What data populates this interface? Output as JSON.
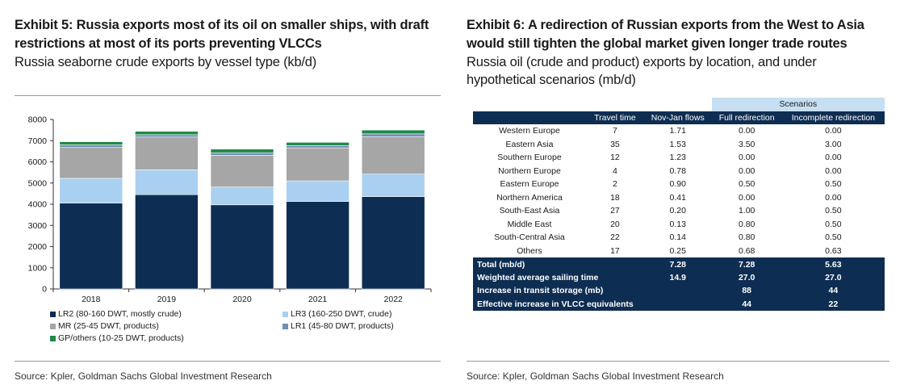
{
  "left": {
    "title": "Exhibit 5: Russia exports most of its oil on smaller ships, with draft restrictions at most of its ports preventing VLCCs",
    "subtitle": "Russia seaborne crude exports by vessel type (kb/d)",
    "source": "Source: Kpler, Goldman Sachs Global Investment Research"
  },
  "right": {
    "title": "Exhibit 6: A redirection of Russian exports from the West to Asia would still tighten the global market given longer trade routes",
    "subtitle": "Russia oil (crude and product) exports by location, and under hypothetical scenarios (mb/d)",
    "source": "Source: Kpler, Goldman Sachs Global Investment Research"
  },
  "colors": {
    "lr2": "#0e2d52",
    "lr3": "#a9d0f0",
    "mr": "#a6a6a6",
    "lr1": "#6f8fb3",
    "gp": "#1e8a4a",
    "table_dark": "#0e2d52",
    "table_light": "#c6dff2"
  },
  "chart_data": {
    "type": "bar",
    "stacked": true,
    "title": "Russia seaborne crude exports by vessel type (kb/d)",
    "categories": [
      "2018",
      "2019",
      "2020",
      "2021",
      "2022"
    ],
    "ylim": [
      0,
      8000
    ],
    "yticks": [
      0,
      1000,
      2000,
      3000,
      4000,
      5000,
      6000,
      7000,
      8000
    ],
    "grid": false,
    "legend_position": "bottom",
    "series": [
      {
        "name": "LR2 (80-160 DWT, mostly crude)",
        "color": "#0e2d52",
        "values": [
          4050,
          4450,
          3970,
          4130,
          4360
        ]
      },
      {
        "name": "LR3 (160-250 DWT, crude)",
        "color": "#a9d0f0",
        "values": [
          1170,
          1170,
          840,
          970,
          1060
        ]
      },
      {
        "name": "MR (25-45 DWT, products)",
        "color": "#a6a6a6",
        "values": [
          1460,
          1550,
          1500,
          1560,
          1760
        ]
      },
      {
        "name": "LR1 (45-80 DWT, products)",
        "color": "#6f8fb3",
        "values": [
          120,
          110,
          120,
          110,
          140
        ]
      },
      {
        "name": "GP/others (10-25 DWT, products)",
        "color": "#1e8a4a",
        "values": [
          150,
          160,
          170,
          150,
          180
        ]
      }
    ]
  },
  "table": {
    "scenarios_label": "Scenarios",
    "headers": [
      "",
      "Travel time",
      "Nov-Jan flows",
      "Full redirection",
      "Incomplete redirection"
    ],
    "rows": [
      [
        "Western Europe",
        "7",
        "1.71",
        "0.00",
        "0.00"
      ],
      [
        "Eastern Asia",
        "35",
        "1.53",
        "3.50",
        "3.00"
      ],
      [
        "Southern Europe",
        "12",
        "1.23",
        "0.00",
        "0.00"
      ],
      [
        "Northern Europe",
        "4",
        "0.78",
        "0.00",
        "0.00"
      ],
      [
        "Eastern Europe",
        "2",
        "0.90",
        "0.50",
        "0.50"
      ],
      [
        "Northern America",
        "18",
        "0.41",
        "0.00",
        "0.00"
      ],
      [
        "South-East Asia",
        "27",
        "0.20",
        "1.00",
        "0.50"
      ],
      [
        "Middle East",
        "20",
        "0.13",
        "0.80",
        "0.50"
      ],
      [
        "South-Central Asia",
        "22",
        "0.14",
        "0.80",
        "0.50"
      ],
      [
        "Others",
        "17",
        "0.25",
        "0.68",
        "0.63"
      ]
    ],
    "totals": [
      [
        "Total (mb/d)",
        "",
        "7.28",
        "7.28",
        "5.63"
      ],
      [
        "Weighted average sailing time",
        "",
        "14.9",
        "27.0",
        "27.0"
      ],
      [
        "Increase in transit storage (mb)",
        "",
        "",
        "88",
        "44"
      ],
      [
        "Effective increase in VLCC equivalents",
        "",
        "",
        "44",
        "22"
      ]
    ]
  }
}
